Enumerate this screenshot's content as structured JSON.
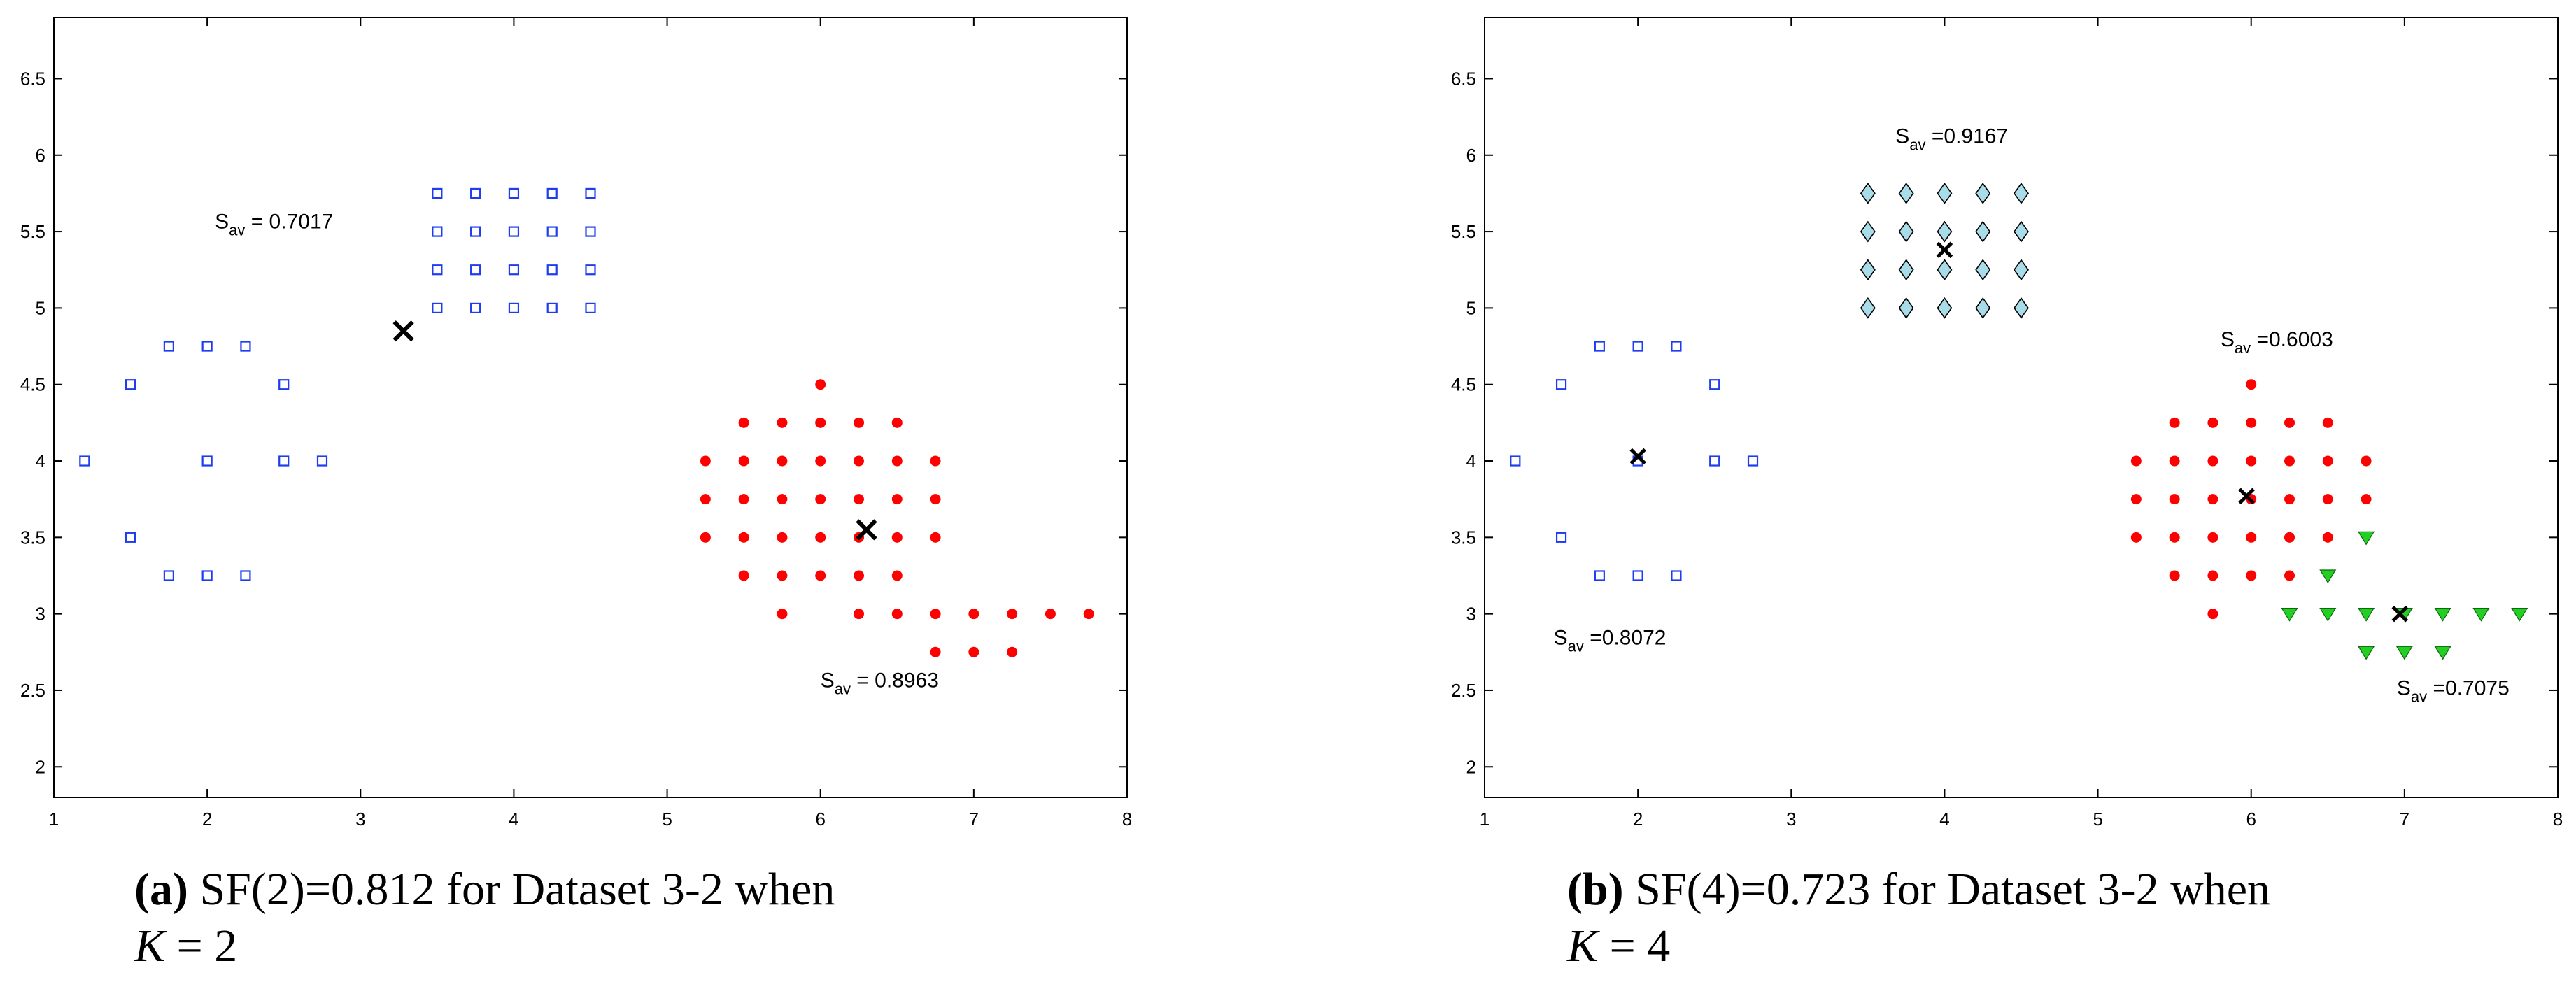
{
  "chart_data": [
    {
      "type": "scatter",
      "xlim": [
        1,
        8
      ],
      "ylim": [
        1.8,
        6.9
      ],
      "xticks": [
        1,
        2,
        3,
        4,
        5,
        6,
        7,
        8
      ],
      "yticks": [
        2,
        2.5,
        3,
        3.5,
        4,
        4.5,
        5,
        5.5,
        6,
        6.5
      ],
      "series": [
        {
          "name": "cluster-1",
          "marker": "square",
          "color": "#1f3df0",
          "points": [
            [
              1.2,
              4
            ],
            [
              1.5,
              4.5
            ],
            [
              1.5,
              3.5
            ],
            [
              1.75,
              4.75
            ],
            [
              1.75,
              3.25
            ],
            [
              2,
              4.75
            ],
            [
              2,
              4
            ],
            [
              2,
              3.25
            ],
            [
              2.25,
              4.75
            ],
            [
              2.25,
              3.25
            ],
            [
              2.5,
              4.5
            ],
            [
              2.5,
              4
            ],
            [
              2.75,
              4
            ],
            [
              3.5,
              5
            ],
            [
              3.5,
              5.25
            ],
            [
              3.5,
              5.5
            ],
            [
              3.5,
              5.75
            ],
            [
              3.75,
              5
            ],
            [
              3.75,
              5.25
            ],
            [
              3.75,
              5.5
            ],
            [
              3.75,
              5.75
            ],
            [
              4,
              5
            ],
            [
              4,
              5.25
            ],
            [
              4,
              5.5
            ],
            [
              4,
              5.75
            ],
            [
              4.25,
              5
            ],
            [
              4.25,
              5.25
            ],
            [
              4.25,
              5.5
            ],
            [
              4.25,
              5.75
            ],
            [
              4.5,
              5
            ],
            [
              4.5,
              5.25
            ],
            [
              4.5,
              5.5
            ],
            [
              4.5,
              5.75
            ]
          ]
        },
        {
          "name": "cluster-2",
          "marker": "dot",
          "color": "#ff0000",
          "points": [
            [
              5.25,
              3.5
            ],
            [
              5.25,
              3.75
            ],
            [
              5.25,
              4
            ],
            [
              5.5,
              3.25
            ],
            [
              5.5,
              3.5
            ],
            [
              5.5,
              3.75
            ],
            [
              5.5,
              4
            ],
            [
              5.5,
              4.25
            ],
            [
              5.75,
              3
            ],
            [
              5.75,
              3.25
            ],
            [
              5.75,
              3.5
            ],
            [
              5.75,
              3.75
            ],
            [
              5.75,
              4
            ],
            [
              5.75,
              4.25
            ],
            [
              6,
              3.25
            ],
            [
              6,
              3.5
            ],
            [
              6,
              3.75
            ],
            [
              6,
              4
            ],
            [
              6,
              4.25
            ],
            [
              6,
              4.5
            ],
            [
              6.25,
              3
            ],
            [
              6.25,
              3.25
            ],
            [
              6.25,
              3.5
            ],
            [
              6.25,
              3.75
            ],
            [
              6.25,
              4
            ],
            [
              6.25,
              4.25
            ],
            [
              6.5,
              3
            ],
            [
              6.5,
              3.25
            ],
            [
              6.5,
              3.5
            ],
            [
              6.5,
              3.75
            ],
            [
              6.5,
              4
            ],
            [
              6.5,
              4.25
            ],
            [
              6.75,
              2.75
            ],
            [
              6.75,
              3
            ],
            [
              6.75,
              3.5
            ],
            [
              6.75,
              3.75
            ],
            [
              6.75,
              4
            ],
            [
              7,
              2.75
            ],
            [
              7,
              3
            ],
            [
              7.25,
              2.75
            ],
            [
              7.25,
              3
            ],
            [
              7.5,
              3
            ],
            [
              7.75,
              3
            ]
          ]
        }
      ],
      "centroids": [
        [
          3.28,
          4.85
        ],
        [
          6.3,
          3.55
        ]
      ],
      "annotations": [
        {
          "prefix": "S",
          "sub": "av",
          "value": " = 0.7017",
          "x": 2.05,
          "y": 5.52
        },
        {
          "prefix": "S",
          "sub": "av",
          "value": " = 0.8963",
          "x": 6.0,
          "y": 2.52
        }
      ]
    },
    {
      "type": "scatter",
      "xlim": [
        1,
        8
      ],
      "ylim": [
        1.8,
        6.9
      ],
      "xticks": [
        1,
        2,
        3,
        4,
        5,
        6,
        7,
        8
      ],
      "yticks": [
        2,
        2.5,
        3,
        3.5,
        4,
        4.5,
        5,
        5.5,
        6,
        6.5
      ],
      "series": [
        {
          "name": "cluster-1",
          "marker": "square",
          "color": "#1f3df0",
          "points": [
            [
              1.2,
              4
            ],
            [
              1.5,
              4.5
            ],
            [
              1.5,
              3.5
            ],
            [
              1.75,
              4.75
            ],
            [
              1.75,
              3.25
            ],
            [
              2,
              4.75
            ],
            [
              2,
              4
            ],
            [
              2,
              3.25
            ],
            [
              2.25,
              4.75
            ],
            [
              2.25,
              3.25
            ],
            [
              2.5,
              4.5
            ],
            [
              2.5,
              4
            ],
            [
              2.75,
              4
            ]
          ]
        },
        {
          "name": "cluster-2",
          "marker": "diamond",
          "color": "#a8dce8",
          "points": [
            [
              3.5,
              5
            ],
            [
              3.5,
              5.25
            ],
            [
              3.5,
              5.5
            ],
            [
              3.5,
              5.75
            ],
            [
              3.75,
              5
            ],
            [
              3.75,
              5.25
            ],
            [
              3.75,
              5.5
            ],
            [
              3.75,
              5.75
            ],
            [
              4,
              5
            ],
            [
              4,
              5.25
            ],
            [
              4,
              5.5
            ],
            [
              4,
              5.75
            ],
            [
              4.25,
              5
            ],
            [
              4.25,
              5.25
            ],
            [
              4.25,
              5.5
            ],
            [
              4.25,
              5.75
            ],
            [
              4.5,
              5
            ],
            [
              4.5,
              5.25
            ],
            [
              4.5,
              5.5
            ],
            [
              4.5,
              5.75
            ]
          ]
        },
        {
          "name": "cluster-3",
          "marker": "dot",
          "color": "#ff0000",
          "points": [
            [
              5.25,
              3.5
            ],
            [
              5.25,
              3.75
            ],
            [
              5.25,
              4
            ],
            [
              5.5,
              3.25
            ],
            [
              5.5,
              3.5
            ],
            [
              5.5,
              3.75
            ],
            [
              5.5,
              4
            ],
            [
              5.5,
              4.25
            ],
            [
              5.75,
              3
            ],
            [
              5.75,
              3.25
            ],
            [
              5.75,
              3.5
            ],
            [
              5.75,
              3.75
            ],
            [
              5.75,
              4
            ],
            [
              5.75,
              4.25
            ],
            [
              6,
              3.25
            ],
            [
              6,
              3.5
            ],
            [
              6,
              3.75
            ],
            [
              6,
              4
            ],
            [
              6,
              4.25
            ],
            [
              6,
              4.5
            ],
            [
              6.25,
              3.25
            ],
            [
              6.25,
              3.5
            ],
            [
              6.25,
              3.75
            ],
            [
              6.25,
              4
            ],
            [
              6.25,
              4.25
            ],
            [
              6.5,
              3.5
            ],
            [
              6.5,
              3.75
            ],
            [
              6.5,
              4
            ],
            [
              6.5,
              4.25
            ],
            [
              6.75,
              3.75
            ],
            [
              6.75,
              4
            ]
          ]
        },
        {
          "name": "cluster-4",
          "marker": "triangle",
          "color": "#22d022",
          "points": [
            [
              6.25,
              3
            ],
            [
              6.5,
              3
            ],
            [
              6.5,
              3.25
            ],
            [
              6.75,
              2.75
            ],
            [
              6.75,
              3
            ],
            [
              6.75,
              3.5
            ],
            [
              7,
              2.75
            ],
            [
              7,
              3
            ],
            [
              7.25,
              2.75
            ],
            [
              7.25,
              3
            ],
            [
              7.5,
              3
            ],
            [
              7.75,
              3
            ]
          ]
        }
      ],
      "centroids": [
        [
          2,
          4.03
        ],
        [
          4,
          5.38
        ],
        [
          5.97,
          3.77
        ],
        [
          6.97,
          3
        ]
      ],
      "annotations": [
        {
          "prefix": "S",
          "sub": "av",
          "value": " =0.9167",
          "x": 3.68,
          "y": 6.08
        },
        {
          "prefix": "S",
          "sub": "av",
          "value": " =0.6003",
          "x": 5.8,
          "y": 4.75
        },
        {
          "prefix": "S",
          "sub": "av",
          "value": " =0.8072",
          "x": 1.45,
          "y": 2.8
        },
        {
          "prefix": "S",
          "sub": "av",
          "value": " =0.7075",
          "x": 6.95,
          "y": 2.47
        }
      ]
    }
  ],
  "captions": [
    {
      "label": "(a)",
      "line1": "SF(2)=0.812 for Dataset 3-2 when",
      "k_var": "K",
      "k_rest": " = 2"
    },
    {
      "label": "(b)",
      "line1": "SF(4)=0.723 for Dataset 3-2 when",
      "k_var": "K",
      "k_rest": " = 4"
    }
  ]
}
